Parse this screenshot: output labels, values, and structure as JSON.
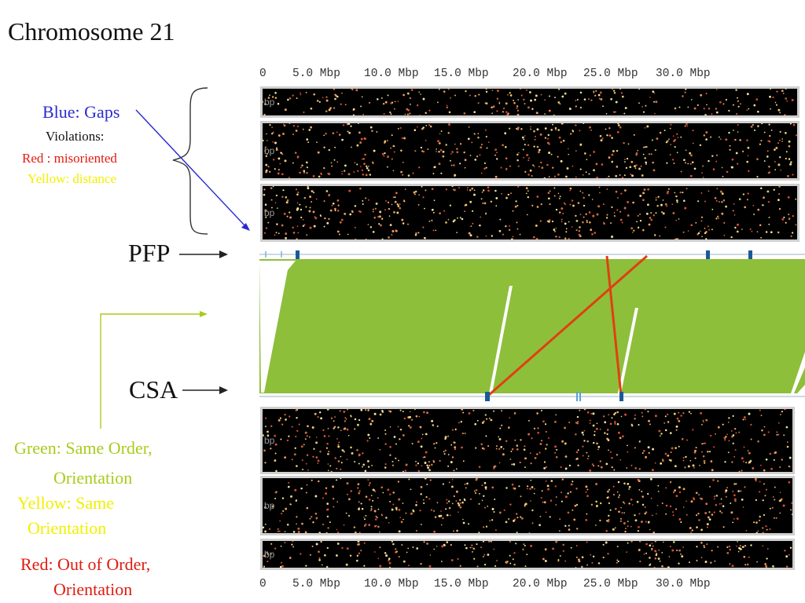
{
  "title": "Chromosome 21",
  "axis": {
    "ticks": [
      "0",
      "5.0 Mbp",
      "10.0 Mbp",
      "15.0 Mbp",
      "20.0 Mbp",
      "25.0 Mbp",
      "30.0 Mbp"
    ]
  },
  "tracks": {
    "label": "bp",
    "dot_colors": [
      "#f0a060",
      "#e8d070",
      "#d85030",
      "#f4e2a0",
      "#c87040"
    ]
  },
  "labels": {
    "pfp": "PFP",
    "csa": "CSA"
  },
  "legend": {
    "blue_gaps": "Blue: Gaps",
    "violations": "Violations:",
    "red_misoriented": "Red : misoriented",
    "yellow_distance": "Yellow: distance",
    "green_line1": "Green: Same Order,",
    "green_line2": "Orientation",
    "yellow_line1": "Yellow: Same",
    "yellow_line2": "Orientation",
    "red_line1": "Red: Out of Order,",
    "red_line2": "Orientation"
  },
  "colors": {
    "green": "#8dbf3b",
    "blue_text": "#2a2ad0",
    "red_text": "#e01b10",
    "yellow_text": "#f0f000",
    "green_text": "#a8cc1c",
    "gap_blue": "#1a5a9a",
    "red_line": "#e04010"
  }
}
